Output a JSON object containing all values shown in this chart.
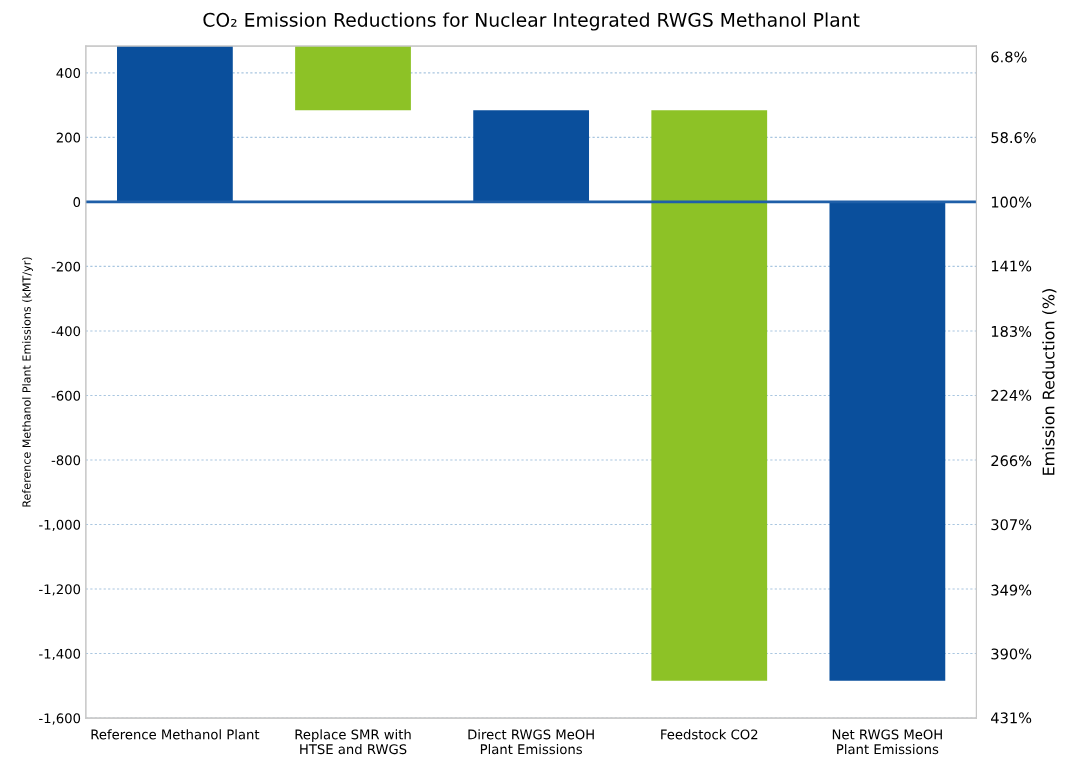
{
  "chart_data": {
    "type": "bar",
    "title": "CO₂ Emission Reductions for Nuclear Integrated RWGS Methanol Plant",
    "ylabel": "Reference Methanol Plant Emissions (kMT/yr)",
    "y2label": "Emission Reduction (%)",
    "categories": [
      "Reference Methanol Plant",
      "Replace SMR with\nHTSE and RWGS",
      "Direct RWGS MeOH\nPlant Emissions",
      "Feedstock CO2",
      "Net RWGS MeOH\nPlant Emissions"
    ],
    "values": [
      483,
      199,
      284,
      1768,
      -1484
    ],
    "base": [
      0,
      284,
      0,
      -1484,
      0
    ],
    "colors": [
      "#0a4f9c",
      "#8dc226",
      "#0a4f9c",
      "#8dc226",
      "#0a4f9c"
    ],
    "ylim": [
      -1600,
      483
    ],
    "yticks": [
      400,
      200,
      0,
      -200,
      -400,
      -600,
      -800,
      {
        "value": -1000,
        "label": "-1,000"
      },
      {
        "value": -1200,
        "label": "-1,200"
      },
      {
        "value": -1400,
        "label": "-1,400"
      },
      {
        "value": -1600,
        "label": "-1,600"
      }
    ],
    "y2lim": [
      431.3,
      0
    ],
    "y2ticks": [
      {
        "value": 6.8,
        "label": "6.8%"
      },
      {
        "value": 58.6,
        "label": "58.6%"
      },
      {
        "value": 100,
        "label": "100%"
      },
      {
        "value": 141,
        "label": "141%"
      },
      {
        "value": 183,
        "label": "183%"
      },
      {
        "value": 224,
        "label": "224%"
      },
      {
        "value": 266,
        "label": "266%"
      },
      {
        "value": 307,
        "label": "307%"
      },
      {
        "value": 349,
        "label": "349%"
      },
      {
        "value": 390,
        "label": "390%"
      },
      {
        "value": 431,
        "label": "431%"
      }
    ],
    "ref_lines": [
      {
        "axis": "y",
        "value": 0,
        "color": "#1f5fa8"
      }
    ],
    "grid": "y"
  }
}
